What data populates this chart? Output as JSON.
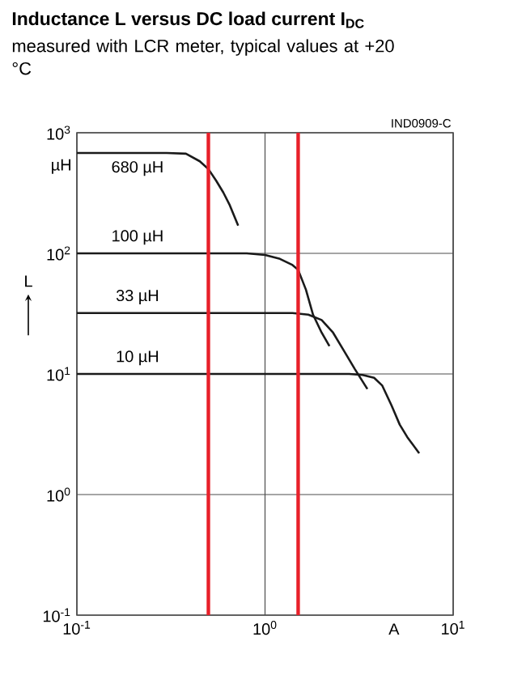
{
  "chart_data": {
    "type": "line",
    "title": "Inductance L versus DC load current I$_{DC}$",
    "subtitle": "measured with LCR meter, typical values at +20 °C",
    "xlabel": "A",
    "ylabel": "L",
    "annotations": [
      "IND0909-C",
      "µH"
    ],
    "log": "xy",
    "grid": true,
    "marker": "none",
    "line_style": "solid",
    "xlim": [
      0.1,
      10
    ],
    "ylim": [
      0.1,
      1000
    ],
    "xticks": [
      {
        "value": 0.1,
        "label": "10$^{-1}$"
      },
      {
        "value": 1,
        "label": "10$^{0}$"
      },
      {
        "value": 10,
        "label": "10$^{1}$"
      }
    ],
    "yticks": [
      {
        "value": 0.1,
        "label": "10$^{-1}$"
      },
      {
        "value": 1,
        "label": "10$^{0}$"
      },
      {
        "value": 10,
        "label": "10$^{1}$"
      },
      {
        "value": 100,
        "label": "10$^{2}$"
      },
      {
        "value": 1000,
        "label": "10$^{3}$"
      }
    ],
    "series": [
      {
        "name": "680 µH",
        "color": "#1a1a1a",
        "x": [
          0.1,
          0.3,
          0.38,
          0.45,
          0.5,
          0.55,
          0.6,
          0.65,
          0.72
        ],
        "values": [
          680,
          680,
          670,
          580,
          500,
          400,
          320,
          250,
          170
        ]
      },
      {
        "name": "100 µH",
        "color": "#1a1a1a",
        "x": [
          0.1,
          0.8,
          1.0,
          1.2,
          1.4,
          1.5,
          1.65,
          1.8,
          2.0,
          2.2
        ],
        "values": [
          100,
          100,
          97,
          90,
          80,
          73,
          50,
          31,
          22,
          17
        ]
      },
      {
        "name": "33 µH",
        "color": "#1a1a1a",
        "x": [
          0.1,
          1.4,
          1.7,
          2.0,
          2.3,
          2.6,
          3.0,
          3.5
        ],
        "values": [
          32,
          32,
          31,
          28,
          22,
          16,
          11,
          7.5
        ]
      },
      {
        "name": "10 µH",
        "color": "#1a1a1a",
        "x": [
          0.1,
          2.8,
          3.3,
          3.8,
          4.2,
          4.7,
          5.2,
          5.7,
          6.6
        ],
        "values": [
          10,
          10,
          9.8,
          9.3,
          8,
          5.5,
          3.8,
          3.0,
          2.2
        ]
      }
    ],
    "ref_lines": [
      {
        "axis": "x",
        "value": 0.5,
        "color": "#e8202a"
      },
      {
        "axis": "x",
        "value": 1.5,
        "color": "#e8202a"
      }
    ]
  }
}
